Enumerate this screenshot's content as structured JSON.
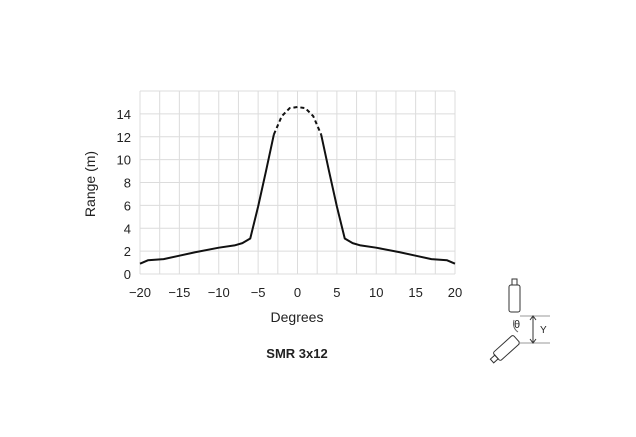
{
  "chart_data": {
    "type": "line",
    "title": "SMR 3x12",
    "xlabel": "Degrees",
    "ylabel": "Range (m)",
    "xlim": [
      -20,
      20
    ],
    "ylim": [
      0,
      16
    ],
    "xticks": [
      "−20",
      "−15",
      "−10",
      "−5",
      "0",
      "5",
      "10",
      "15",
      "20"
    ],
    "yticks": [
      "0",
      "2",
      "4",
      "6",
      "8",
      "10",
      "12",
      "14"
    ],
    "grid": true,
    "series": [
      {
        "style": "solid",
        "x": [
          -20,
          -19,
          -17,
          -15,
          -13,
          -10,
          -8,
          -7,
          -6,
          -5,
          -4,
          -3
        ],
        "y": [
          0.9,
          1.2,
          1.3,
          1.6,
          1.9,
          2.3,
          2.5,
          2.7,
          3.1,
          5.9,
          9.0,
          12.2
        ]
      },
      {
        "style": "dashed",
        "x": [
          -3,
          -2,
          -1,
          0,
          1,
          2,
          3
        ],
        "y": [
          12.2,
          13.8,
          14.5,
          14.6,
          14.5,
          13.8,
          12.2
        ]
      },
      {
        "style": "solid",
        "x": [
          3,
          4,
          5,
          6,
          7,
          8,
          10,
          13,
          15,
          17,
          19,
          20
        ],
        "y": [
          12.2,
          9.0,
          5.9,
          3.1,
          2.7,
          2.5,
          2.3,
          1.9,
          1.6,
          1.3,
          1.2,
          0.9
        ]
      }
    ]
  },
  "diagram": {
    "angle_label": "θ",
    "offset_label": "Y",
    "color": "#222222"
  }
}
